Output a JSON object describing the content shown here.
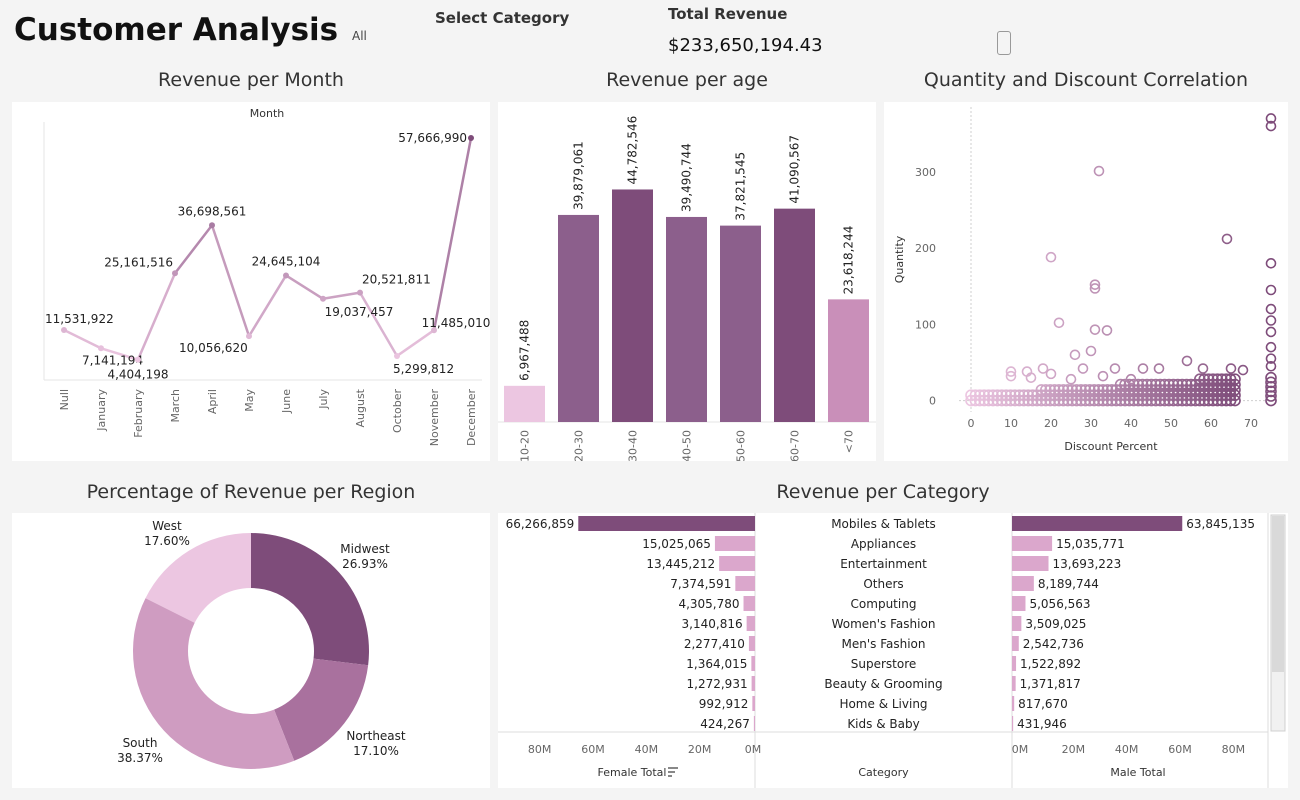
{
  "header": {
    "title": "Customer Analysis",
    "filter_value": "All",
    "filter_label": "Select Category",
    "revenue_label": "Total Revenue",
    "revenue_value": "$233,650,194.43",
    "device_icon": "tablet-icon"
  },
  "colors": {
    "light": "#ecc6e1",
    "mid": "#c98fb9",
    "dark": "#7e4c7a",
    "bar_mid": "#8c5f8c",
    "cat_light": "#dba7cc"
  },
  "chart_data": [
    {
      "id": "revenue_per_month",
      "type": "line",
      "title": "Revenue per Month",
      "column_header": "Month",
      "categories": [
        "Null",
        "January",
        "February",
        "March",
        "April",
        "May",
        "June",
        "July",
        "August",
        "October",
        "November",
        "December"
      ],
      "values": [
        11531922,
        7141194,
        4404198,
        25161516,
        36698561,
        10056620,
        24645104,
        19037457,
        20521811,
        5299812,
        11485010,
        57666990
      ],
      "labels": [
        "11,531,922",
        "7,141,194",
        "4,404,198",
        "25,161,516",
        "36,698,561",
        "10,056,620",
        "24,645,104",
        "19,037,457",
        "20,521,811",
        "5,299,812",
        "11,485,010",
        "57,666,990"
      ],
      "ylim": [
        0,
        62000000
      ]
    },
    {
      "id": "revenue_per_age",
      "type": "bar",
      "title": "Revenue per age",
      "categories": [
        "10-20",
        "20-30",
        "30-40",
        "40-50",
        "50-60",
        "60-70",
        "<70"
      ],
      "values": [
        6967488,
        39879061,
        44782546,
        39490744,
        37821545,
        41090567,
        23618244
      ],
      "labels": [
        "6,967,488",
        "39,879,061",
        "44,782,546",
        "39,490,744",
        "37,821,545",
        "41,090,567",
        "23,618,244"
      ],
      "ylim": [
        0,
        52000000
      ]
    },
    {
      "id": "quantity_discount",
      "type": "scatter",
      "title": "Quantity and Discount  Correlation",
      "xlabel": "Discount Percent",
      "ylabel": "Quantity",
      "xticks": [
        "0",
        "10",
        "20",
        "30",
        "40",
        "50",
        "60",
        "70"
      ],
      "yticks": [
        "0",
        "100",
        "200",
        "300"
      ],
      "xlim": [
        -3,
        77
      ],
      "ylim": [
        -15,
        385
      ],
      "outliers": [
        [
          75,
          370
        ],
        [
          75,
          360
        ],
        [
          32,
          301
        ],
        [
          20,
          188
        ],
        [
          64,
          212
        ],
        [
          75,
          180
        ],
        [
          75,
          145
        ],
        [
          75,
          120
        ],
        [
          75,
          105
        ],
        [
          75,
          90
        ],
        [
          75,
          70
        ],
        [
          75,
          55
        ],
        [
          75,
          45
        ],
        [
          31,
          152
        ],
        [
          31,
          147
        ],
        [
          22,
          102
        ],
        [
          31,
          93
        ],
        [
          34,
          92
        ],
        [
          30,
          65
        ],
        [
          26,
          60
        ],
        [
          28,
          42
        ],
        [
          36,
          42
        ],
        [
          43,
          42
        ],
        [
          47,
          42
        ],
        [
          54,
          52
        ],
        [
          58,
          42
        ],
        [
          65,
          42
        ],
        [
          68,
          40
        ],
        [
          10,
          38
        ],
        [
          14,
          38
        ],
        [
          18,
          42
        ],
        [
          10,
          32
        ],
        [
          15,
          30
        ],
        [
          20,
          35
        ],
        [
          25,
          28
        ],
        [
          33,
          32
        ],
        [
          40,
          28
        ]
      ]
    },
    {
      "id": "revenue_per_region",
      "type": "pie",
      "title": "Percentage of Revenue per Region",
      "slices": [
        {
          "name": "Midwest",
          "value": 26.93,
          "label": "26.93%"
        },
        {
          "name": "Northeast",
          "value": 17.1,
          "label": "17.10%"
        },
        {
          "name": "South",
          "value": 38.37,
          "label": "38.37%"
        },
        {
          "name": "West",
          "value": 17.6,
          "label": "17.60%"
        }
      ]
    },
    {
      "id": "revenue_per_category",
      "type": "bar",
      "title": "Revenue per Category",
      "categories": [
        "Mobiles & Tablets",
        "Appliances",
        "Entertainment",
        "Others",
        "Computing",
        "Women's Fashion",
        "Men's Fashion",
        "Superstore",
        "Beauty & Grooming",
        "Home & Living",
        "Kids & Baby"
      ],
      "series": [
        {
          "name": "Female Total",
          "values": [
            66266859,
            15025065,
            13445212,
            7374591,
            4305780,
            3140816,
            2277410,
            1364015,
            1272931,
            992912,
            424267
          ],
          "labels": [
            "66,266,859",
            "15,025,065",
            "13,445,212",
            "7,374,591",
            "4,305,780",
            "3,140,816",
            "2,277,410",
            "1,364,015",
            "1,272,931",
            "992,912",
            "424,267"
          ]
        },
        {
          "name": "Male Total",
          "values": [
            63845135,
            15035771,
            13693223,
            8189744,
            5056563,
            3509025,
            2542736,
            1522892,
            1371817,
            817670,
            431946
          ],
          "labels": [
            "63,845,135",
            "15,035,771",
            "13,693,223",
            "8,189,744",
            "5,056,563",
            "3,509,025",
            "2,542,736",
            "1,522,892",
            "1,371,817",
            "817,670",
            "431,946"
          ]
        }
      ],
      "axis_header": "Category",
      "female_ticks": [
        "80M",
        "60M",
        "40M",
        "20M",
        "0M"
      ],
      "male_ticks": [
        "0M",
        "20M",
        "40M",
        "60M",
        "80M"
      ],
      "xmax": 90000000
    }
  ]
}
